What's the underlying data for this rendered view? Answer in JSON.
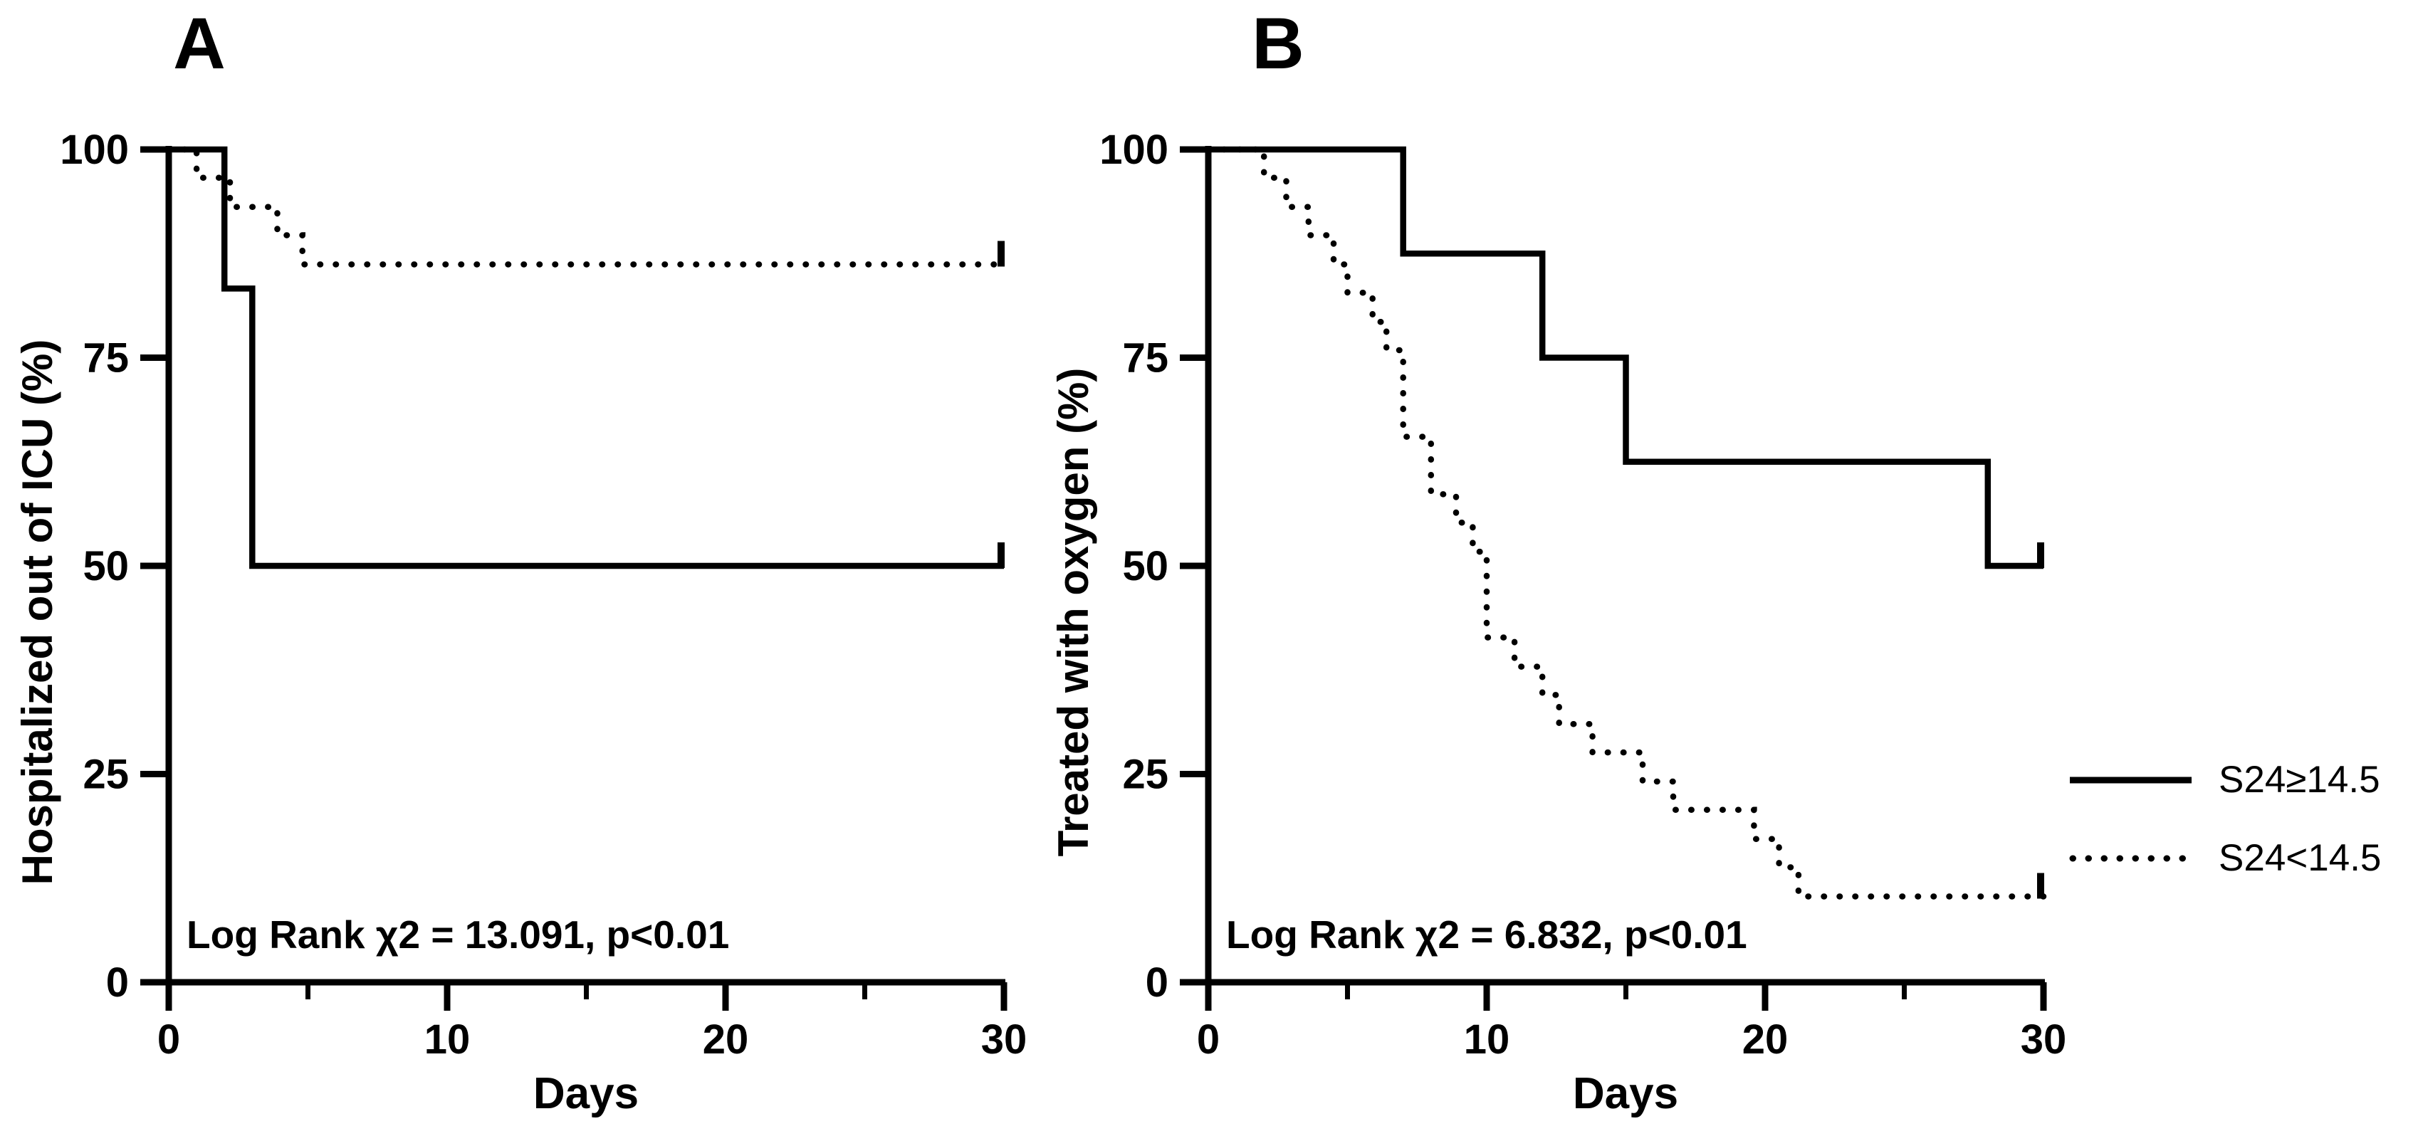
{
  "figure": {
    "background": "#ffffff",
    "ink": "#000000"
  },
  "legend": {
    "entries": [
      {
        "label": "S24≥14.5",
        "style": "solid"
      },
      {
        "label": "S24<14.5",
        "style": "dotted"
      }
    ]
  },
  "chart_data": [
    {
      "id": "A",
      "type": "line",
      "subtype": "kaplan-meier-step",
      "title": "A",
      "ylabel": "Hospitalized out of ICU (%)",
      "xlabel": "Days",
      "annotation": "Log Rank χ2 = 13.091, p<0.01",
      "xlim": [
        0,
        30
      ],
      "ylim": [
        0,
        100
      ],
      "xticks_major": [
        0,
        10,
        20,
        30
      ],
      "xticks_minor": [
        5,
        15,
        25
      ],
      "yticks": [
        100,
        75,
        50,
        25,
        0
      ],
      "grid": false,
      "legend_position": "outside-right",
      "series": [
        {
          "name": "S24≥14.5",
          "style": "solid",
          "end_tick": true,
          "points": [
            [
              0,
              100
            ],
            [
              2,
              100
            ],
            [
              2,
              83.3
            ],
            [
              3,
              83.3
            ],
            [
              3,
              50
            ],
            [
              30,
              50
            ]
          ]
        },
        {
          "name": "S24<14.5",
          "style": "dotted",
          "end_tick": true,
          "points": [
            [
              0,
              100
            ],
            [
              1,
              100
            ],
            [
              1,
              96.6
            ],
            [
              2.2,
              96.6
            ],
            [
              2.2,
              93.1
            ],
            [
              3.9,
              93.1
            ],
            [
              3.9,
              89.7
            ],
            [
              4.8,
              89.7
            ],
            [
              4.8,
              86.2
            ],
            [
              30,
              86.2
            ]
          ]
        }
      ]
    },
    {
      "id": "B",
      "type": "line",
      "subtype": "kaplan-meier-step",
      "title": "B",
      "ylabel": "Treated with oxygen (%)",
      "xlabel": "Days",
      "annotation": "Log Rank χ2 = 6.832, p<0.01",
      "xlim": [
        0,
        30
      ],
      "ylim": [
        0,
        100
      ],
      "xticks_major": [
        0,
        10,
        20,
        30
      ],
      "xticks_minor": [
        5,
        15,
        25
      ],
      "yticks": [
        100,
        75,
        50,
        25,
        0
      ],
      "grid": false,
      "legend_position": "outside-right",
      "series": [
        {
          "name": "S24≥14.5",
          "style": "solid",
          "end_tick": true,
          "points": [
            [
              0,
              100
            ],
            [
              7,
              100
            ],
            [
              7,
              87.5
            ],
            [
              12,
              87.5
            ],
            [
              12,
              75
            ],
            [
              15,
              75
            ],
            [
              15,
              62.5
            ],
            [
              28,
              62.5
            ],
            [
              28,
              50
            ],
            [
              30,
              50
            ]
          ]
        },
        {
          "name": "S24<14.5",
          "style": "dotted",
          "end_tick": true,
          "points": [
            [
              0,
              100
            ],
            [
              2,
              100
            ],
            [
              2,
              96.6
            ],
            [
              2.8,
              96.6
            ],
            [
              2.8,
              93.1
            ],
            [
              3.6,
              93.1
            ],
            [
              3.6,
              89.7
            ],
            [
              4.5,
              89.7
            ],
            [
              4.5,
              86.2
            ],
            [
              5,
              86.2
            ],
            [
              5,
              82.8
            ],
            [
              5.9,
              82.8
            ],
            [
              5.9,
              79.3
            ],
            [
              6.4,
              79.3
            ],
            [
              6.4,
              75.9
            ],
            [
              7,
              75.9
            ],
            [
              7,
              65.5
            ],
            [
              8,
              65.5
            ],
            [
              8,
              58.6
            ],
            [
              8.9,
              58.6
            ],
            [
              8.9,
              55.2
            ],
            [
              9.5,
              55.2
            ],
            [
              9.5,
              51.7
            ],
            [
              10,
              51.7
            ],
            [
              10,
              41.4
            ],
            [
              11,
              41.4
            ],
            [
              11,
              37.9
            ],
            [
              12,
              37.9
            ],
            [
              12,
              34.5
            ],
            [
              12.6,
              34.5
            ],
            [
              12.6,
              31
            ],
            [
              13.8,
              31
            ],
            [
              13.8,
              27.6
            ],
            [
              15.6,
              27.6
            ],
            [
              15.6,
              24.1
            ],
            [
              16.7,
              24.1
            ],
            [
              16.7,
              20.7
            ],
            [
              19.6,
              20.7
            ],
            [
              19.6,
              17.2
            ],
            [
              20.5,
              17.2
            ],
            [
              20.5,
              13.8
            ],
            [
              21.2,
              13.8
            ],
            [
              21.2,
              10.3
            ],
            [
              30,
              10.3
            ]
          ]
        }
      ]
    }
  ]
}
